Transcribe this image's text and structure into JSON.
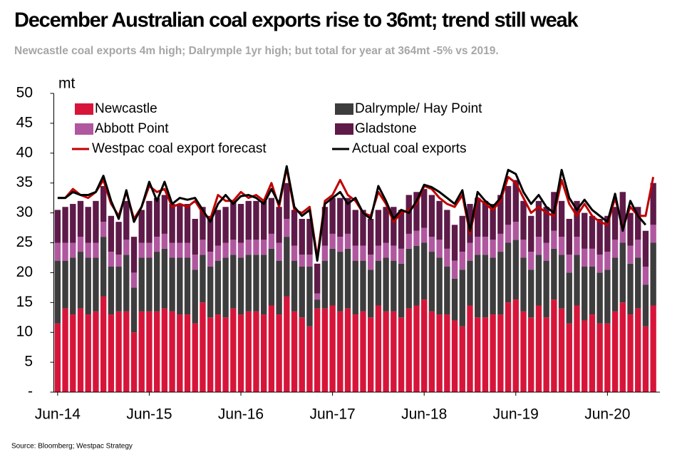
{
  "chart_data": {
    "type": "bar",
    "stacked": true,
    "title": "December Australian coal exports rise to 36mt; trend still weak",
    "subtitle": "Newcastle coal exports 4m high; Dalrymple 1yr high; but total for year at 364mt -5% vs 2019.",
    "ylabel": "mt",
    "source": "Source: Bloomberg; Westpac Strategy",
    "legend": "top",
    "ylim": [
      0,
      50
    ],
    "yticks": [
      {
        "value": 0,
        "label": "-"
      },
      5,
      10,
      15,
      20,
      25,
      30,
      35,
      40,
      45,
      50
    ],
    "categories": [
      "Jun-14",
      null,
      null,
      null,
      null,
      null,
      null,
      null,
      null,
      null,
      null,
      null,
      "Jun-15",
      null,
      null,
      null,
      null,
      null,
      null,
      null,
      null,
      null,
      null,
      null,
      "Jun-16",
      null,
      null,
      null,
      null,
      null,
      null,
      null,
      null,
      null,
      null,
      null,
      "Jun-17",
      null,
      null,
      null,
      null,
      null,
      null,
      null,
      null,
      null,
      null,
      null,
      "Jun-18",
      null,
      null,
      null,
      null,
      null,
      null,
      null,
      null,
      null,
      null,
      null,
      "Jun-19",
      null,
      null,
      null,
      null,
      null,
      null,
      null,
      null,
      null,
      null,
      null,
      "Jun-20",
      null,
      null,
      null,
      null,
      null,
      null
    ],
    "series": [
      {
        "name": "Newcastle",
        "color": "#d7153a",
        "values": [
          11.5,
          14,
          13,
          14,
          13,
          13.5,
          16,
          13,
          13.5,
          13.5,
          10,
          13.5,
          13.5,
          13.5,
          14,
          13.5,
          13,
          13,
          11.5,
          15,
          12.5,
          13,
          12.5,
          14,
          13,
          13.5,
          13.5,
          13,
          14.5,
          13,
          16,
          13.5,
          12.5,
          11,
          14,
          14,
          14.5,
          13.5,
          14,
          13,
          13.5,
          12.5,
          14.5,
          13.5,
          13.5,
          12.5,
          14,
          14.5,
          15.5,
          13.5,
          13,
          13,
          12,
          11,
          14.5,
          12.5,
          12.5,
          13,
          13,
          15,
          15.5,
          13.5,
          12.5,
          14.5,
          12.5,
          15.5,
          14,
          11.5,
          14.5,
          12,
          13,
          11.5,
          11.5,
          13.5,
          15,
          13,
          14,
          11,
          14.5
        ]
      },
      {
        "name": "Dalrymple/ Hay Point",
        "color": "#3d3d3d",
        "values": [
          10.5,
          8,
          9.5,
          9.5,
          9.5,
          9,
          10,
          8,
          7.5,
          9.5,
          7.5,
          9,
          9,
          10,
          10,
          9,
          9.5,
          9.5,
          9,
          8,
          8.5,
          9,
          10,
          9,
          9.5,
          9.5,
          9.5,
          10,
          9.5,
          9,
          10,
          8.5,
          8.5,
          10,
          1.5,
          8,
          9.5,
          10,
          10,
          9,
          8.5,
          8,
          7.5,
          9,
          8.5,
          9,
          10,
          10,
          9.5,
          10,
          9.5,
          8,
          7,
          9.5,
          7.5,
          10.5,
          10.5,
          9.5,
          10.5,
          10,
          10,
          9,
          8,
          8.5,
          9.5,
          8.5,
          9,
          8.5,
          8.5,
          9,
          8,
          8.5,
          9,
          9,
          10,
          8.5,
          8.5,
          7,
          10.5
        ]
      },
      {
        "name": "Abbott Point",
        "color": "#b0579f",
        "values": [
          3,
          3,
          2.5,
          2.5,
          2.5,
          2.5,
          2.5,
          2.5,
          2,
          2.5,
          2.5,
          2.5,
          2.5,
          2.5,
          2.5,
          2.5,
          2.5,
          2.5,
          2.5,
          2.5,
          2.5,
          2.5,
          2.5,
          2.5,
          2.5,
          2.5,
          2.5,
          2.5,
          2.5,
          3,
          3,
          2.5,
          2,
          2,
          1,
          2.5,
          2.5,
          2.5,
          2.5,
          2.5,
          2.5,
          2.5,
          2.5,
          2.5,
          2.5,
          2.5,
          2.5,
          2.5,
          2.5,
          2.5,
          3,
          3,
          3,
          3,
          3,
          3,
          3,
          3,
          3,
          3,
          3,
          3,
          3,
          3,
          3,
          3,
          3,
          3,
          3,
          3,
          3,
          3,
          3,
          3,
          3,
          3,
          3,
          3,
          3
        ]
      },
      {
        "name": "Gladstone",
        "color": "#5e1a48",
        "values": [
          5.5,
          6,
          6.5,
          6,
          6,
          7,
          6,
          6,
          5.5,
          6.5,
          6,
          5.5,
          7,
          6.5,
          6.5,
          6.5,
          6.5,
          6.5,
          6,
          5.5,
          6,
          6,
          6,
          6.5,
          6.5,
          6.5,
          6.5,
          6.5,
          6,
          6,
          6,
          6,
          6,
          6,
          5,
          6.5,
          6,
          6.5,
          6,
          6,
          6,
          6,
          6,
          6,
          6.5,
          6.5,
          6.5,
          6.5,
          6.5,
          7,
          6.5,
          6.5,
          6,
          6,
          6.5,
          6.5,
          6,
          6,
          6.5,
          6.5,
          7,
          6.5,
          6,
          6,
          6,
          6.5,
          6,
          6,
          6,
          6,
          5.5,
          6,
          6,
          5.5,
          5.5,
          5.5,
          5.5,
          6,
          7
        ]
      },
      {
        "name": "Westpac coal export forecast",
        "type": "line",
        "color": "#c00000",
        "values": [
          32.5,
          32.5,
          34,
          33,
          32.5,
          33.5,
          35.5,
          31.5,
          29.5,
          33.5,
          29,
          31,
          34.5,
          33.5,
          34,
          31,
          31.5,
          31,
          32,
          30,
          29,
          33,
          32,
          32,
          33.5,
          32.5,
          33,
          32,
          35,
          31,
          37.5,
          30.5,
          30,
          31,
          22.5,
          32,
          33,
          35.5,
          33,
          32,
          30,
          29.5,
          33.5,
          31.5,
          28.5,
          30,
          30.5,
          31.5,
          34.5,
          34,
          32.5,
          31.5,
          31,
          33,
          26.5,
          32.5,
          31.5,
          30.5,
          32,
          36,
          35,
          32.5,
          30,
          31,
          30,
          29.5,
          35.5,
          31.5,
          29.5,
          31.5,
          29.5,
          28.5,
          28,
          32.5,
          27.5,
          31,
          29.5,
          29.5,
          36
        ]
      },
      {
        "name": "Actual coal exports",
        "type": "line",
        "color": "#000000",
        "values": [
          32.5,
          32.5,
          33.5,
          33,
          33,
          33.5,
          36.2,
          32,
          29,
          33.8,
          28.5,
          31,
          35.2,
          32,
          35.2,
          31.5,
          32.5,
          32.2,
          32.5,
          30.5,
          28.5,
          31.5,
          33,
          31.5,
          32.8,
          33,
          32.5,
          31.5,
          34,
          31.5,
          37.8,
          31,
          29.5,
          30.5,
          22,
          31.5,
          32.5,
          33.5,
          31.5,
          32.5,
          30,
          29,
          34.5,
          32,
          29,
          30.5,
          30,
          32,
          34.7,
          34.3,
          33.5,
          32.5,
          31.5,
          33.8,
          27,
          33.5,
          32,
          31,
          32.5,
          37.2,
          36.5,
          33.5,
          31.5,
          33,
          31,
          30,
          37.2,
          32.5,
          30.5,
          32.2,
          30.5,
          29.5,
          28.5,
          33.2,
          27,
          32,
          29.5,
          28,
          null
        ]
      }
    ]
  }
}
